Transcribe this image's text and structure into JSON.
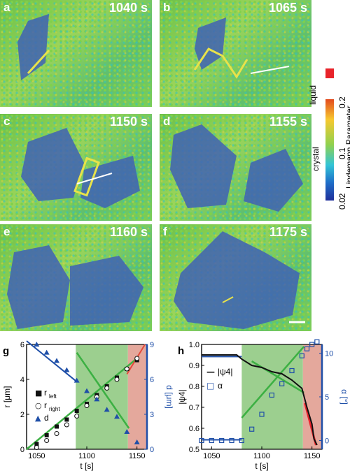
{
  "panels": [
    {
      "label": "a",
      "time": "1040 s"
    },
    {
      "label": "b",
      "time": "1065 s"
    },
    {
      "label": "c",
      "time": "1150 s"
    },
    {
      "label": "d",
      "time": "1155 s"
    },
    {
      "label": "e",
      "time": "1160 s"
    },
    {
      "label": "f",
      "time": "1175 s"
    }
  ],
  "colorbar": {
    "liquid_label": "liquid",
    "crystal_label": "crystal",
    "title": "Lindemann Parameter",
    "ticks": [
      "0.2",
      "0.1",
      "0.02"
    ],
    "colors": {
      "liquid": "#e8232a",
      "high": "#e34a1e",
      "mid": "#8fd14f",
      "low": "#1f2f9a"
    }
  },
  "graph_g": {
    "label": "g",
    "xlabel": "t [s]",
    "ylabel_left": "r [μm]",
    "ylabel_right": "d [μm]",
    "xticks": [
      "1050",
      "1100",
      "1150"
    ],
    "yticks_left": [
      "0",
      "2",
      "4",
      "6"
    ],
    "yticks_right": [
      "0",
      "3",
      "6",
      "9"
    ],
    "legend": [
      {
        "sym": "■",
        "text": "r",
        "sub": "left"
      },
      {
        "sym": "○",
        "text": "r",
        "sub": "right"
      },
      {
        "sym": "▲",
        "text": "d",
        "sub": ""
      }
    ]
  },
  "graph_h": {
    "label": "h",
    "xlabel": "t [s]",
    "ylabel_left": "|ψ4|",
    "ylabel_right": "α [°]",
    "xticks": [
      "1050",
      "1100",
      "1150"
    ],
    "yticks_left": [
      "0.5",
      "0.6",
      "0.7",
      "0.8",
      "0.9",
      "1.0"
    ],
    "yticks_right": [
      "0",
      "5",
      "10"
    ],
    "legend": [
      {
        "sym": "—",
        "text": "|ψ4|"
      },
      {
        "sym": "□",
        "text": "α"
      }
    ]
  },
  "chart_data": [
    {
      "type": "scatter",
      "panel": "g",
      "xlabel": "t [s]",
      "ylabel": "r [μm]",
      "y2label": "d [μm]",
      "xlim": [
        1040,
        1160
      ],
      "ylim": [
        0,
        6
      ],
      "y2lim": [
        0,
        9
      ],
      "shaded_regions": [
        {
          "x": [
            1089,
            1141
          ],
          "color": "#9ccf8f"
        },
        {
          "x": [
            1141,
            1160
          ],
          "color": "#e4a89c"
        }
      ],
      "series": [
        {
          "name": "r_left",
          "marker": "square",
          "x": [
            1050,
            1060,
            1070,
            1080,
            1090,
            1100,
            1110,
            1120,
            1130,
            1140,
            1150
          ],
          "y": [
            0.3,
            0.8,
            1.3,
            1.7,
            2.2,
            2.6,
            3.1,
            3.6,
            4.1,
            4.6,
            5.1
          ]
        },
        {
          "name": "r_right",
          "marker": "circle",
          "x": [
            1050,
            1060,
            1070,
            1080,
            1090,
            1100,
            1110,
            1120,
            1130,
            1140,
            1150
          ],
          "y": [
            0.1,
            0.5,
            0.9,
            1.4,
            1.9,
            2.5,
            3.0,
            3.5,
            4.0,
            4.6,
            5.2
          ]
        },
        {
          "name": "d",
          "marker": "triangle",
          "axis": "right",
          "x": [
            1050,
            1060,
            1070,
            1080,
            1090,
            1100,
            1110,
            1120,
            1130,
            1140,
            1150
          ],
          "y": [
            9.0,
            8.3,
            7.6,
            6.8,
            5.9,
            5.0,
            4.3,
            3.4,
            2.8,
            1.5,
            0.6
          ]
        }
      ]
    },
    {
      "type": "line",
      "panel": "h",
      "xlabel": "t [s]",
      "ylabel": "|ψ4|",
      "y2label": "α [°]",
      "xlim": [
        1040,
        1160
      ],
      "ylim": [
        0.5,
        1.0
      ],
      "y2lim": [
        -1,
        11
      ],
      "shaded_regions": [
        {
          "x": [
            1080,
            1141
          ],
          "color": "#9ccf8f"
        },
        {
          "x": [
            1141,
            1160
          ],
          "color": "#e4a89c"
        }
      ],
      "series": [
        {
          "name": "|ψ4|",
          "marker": "line",
          "x": [
            1040,
            1060,
            1075,
            1080,
            1090,
            1100,
            1110,
            1120,
            1130,
            1140,
            1145,
            1150,
            1152,
            1155
          ],
          "y": [
            0.95,
            0.95,
            0.95,
            0.93,
            0.9,
            0.89,
            0.87,
            0.86,
            0.83,
            0.79,
            0.7,
            0.62,
            0.55,
            0.52
          ]
        },
        {
          "name": "α",
          "marker": "square-open",
          "axis": "right",
          "x": [
            1040,
            1050,
            1060,
            1070,
            1080,
            1090,
            1100,
            1110,
            1120,
            1130,
            1140,
            1145,
            1150,
            1155
          ],
          "y": [
            0,
            0,
            0,
            0,
            0,
            1.3,
            3.0,
            5.2,
            6.5,
            8.0,
            9.7,
            10.5,
            11.0,
            11.3
          ]
        }
      ]
    }
  ]
}
